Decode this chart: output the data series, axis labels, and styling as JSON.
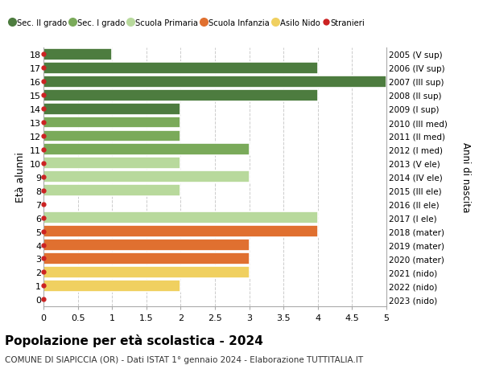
{
  "ages": [
    18,
    17,
    16,
    15,
    14,
    13,
    12,
    11,
    10,
    9,
    8,
    7,
    6,
    5,
    4,
    3,
    2,
    1,
    0
  ],
  "right_labels": [
    "2005 (V sup)",
    "2006 (IV sup)",
    "2007 (III sup)",
    "2008 (II sup)",
    "2009 (I sup)",
    "2010 (III med)",
    "2011 (II med)",
    "2012 (I med)",
    "2013 (V ele)",
    "2014 (IV ele)",
    "2015 (III ele)",
    "2016 (II ele)",
    "2017 (I ele)",
    "2018 (mater)",
    "2019 (mater)",
    "2020 (mater)",
    "2021 (nido)",
    "2022 (nido)",
    "2023 (nido)"
  ],
  "values": [
    1,
    4,
    5,
    4,
    2,
    2,
    2,
    3,
    2,
    3,
    2,
    0,
    4,
    4,
    3,
    3,
    3,
    2,
    0
  ],
  "colors": [
    "#4d7c3f",
    "#4d7c3f",
    "#4d7c3f",
    "#4d7c3f",
    "#4d7c3f",
    "#7aaa5a",
    "#7aaa5a",
    "#7aaa5a",
    "#b8d99c",
    "#b8d99c",
    "#b8d99c",
    "#b8d99c",
    "#b8d99c",
    "#e07030",
    "#e07030",
    "#e07030",
    "#f0d060",
    "#f0d060",
    "#f0d060"
  ],
  "legend_labels": [
    "Sec. II grado",
    "Sec. I grado",
    "Scuola Primaria",
    "Scuola Infanzia",
    "Asilo Nido",
    "Stranieri"
  ],
  "legend_colors": [
    "#4d7c3f",
    "#7aaa5a",
    "#b8d99c",
    "#e07030",
    "#f0d060",
    "#cc2222"
  ],
  "title": "Popolazione per età scolastica - 2024",
  "subtitle": "COMUNE DI SIAPICCIA (OR) - Dati ISTAT 1° gennaio 2024 - Elaborazione TUTTITALIA.IT",
  "ylabel": "Età alunni",
  "right_ylabel": "Anni di nascita",
  "xlim": [
    0,
    5.0
  ],
  "xticks": [
    0,
    0.5,
    1.0,
    1.5,
    2.0,
    2.5,
    3.0,
    3.5,
    4.0,
    4.5,
    5.0
  ],
  "background_color": "#ffffff",
  "grid_color": "#cccccc",
  "bar_height": 0.88,
  "bar_edgecolor": "white",
  "bar_linewidth": 1.2
}
